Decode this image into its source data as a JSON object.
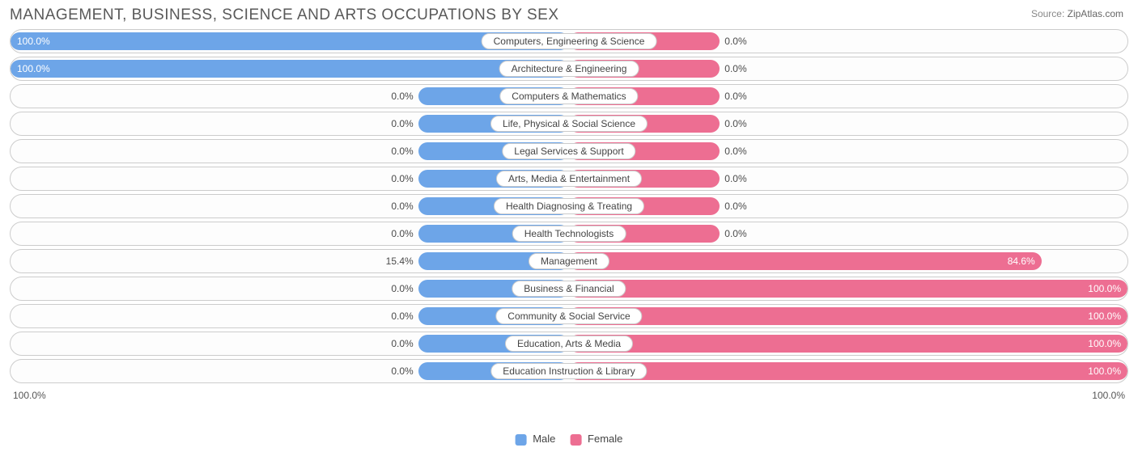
{
  "title": "MANAGEMENT, BUSINESS, SCIENCE AND ARTS OCCUPATIONS BY SEX",
  "source_label": "Source:",
  "source_value": "ZipAtlas.com",
  "axis": {
    "left": "100.0%",
    "right": "100.0%"
  },
  "legend": {
    "male": {
      "label": "Male",
      "color": "#6da5e8"
    },
    "female": {
      "label": "Female",
      "color": "#ed6e92"
    }
  },
  "colors": {
    "male_bar": "#6da5e8",
    "female_bar": "#ed6e92",
    "border": "#cccccc",
    "bg": "#ffffff",
    "title": "#595959"
  },
  "default_bar_min_pct": 27,
  "rows": [
    {
      "label": "Computers, Engineering & Science",
      "male": 100.0,
      "female": 0.0
    },
    {
      "label": "Architecture & Engineering",
      "male": 100.0,
      "female": 0.0
    },
    {
      "label": "Computers & Mathematics",
      "male": 0.0,
      "female": 0.0
    },
    {
      "label": "Life, Physical & Social Science",
      "male": 0.0,
      "female": 0.0
    },
    {
      "label": "Legal Services & Support",
      "male": 0.0,
      "female": 0.0
    },
    {
      "label": "Arts, Media & Entertainment",
      "male": 0.0,
      "female": 0.0
    },
    {
      "label": "Health Diagnosing & Treating",
      "male": 0.0,
      "female": 0.0
    },
    {
      "label": "Health Technologists",
      "male": 0.0,
      "female": 0.0
    },
    {
      "label": "Management",
      "male": 15.4,
      "female": 84.6
    },
    {
      "label": "Business & Financial",
      "male": 0.0,
      "female": 100.0
    },
    {
      "label": "Community & Social Service",
      "male": 0.0,
      "female": 100.0
    },
    {
      "label": "Education, Arts & Media",
      "male": 0.0,
      "female": 100.0
    },
    {
      "label": "Education Instruction & Library",
      "male": 0.0,
      "female": 100.0
    }
  ]
}
